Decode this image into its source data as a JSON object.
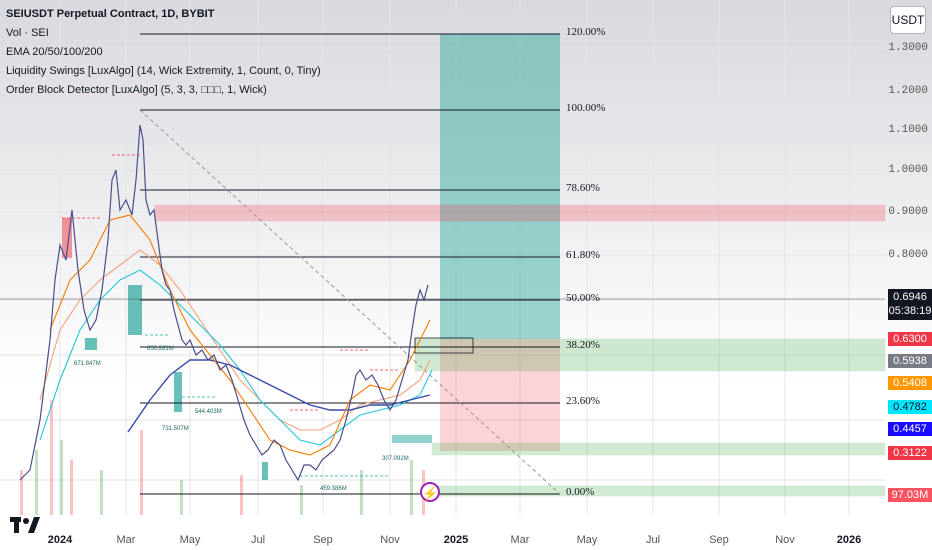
{
  "legend": {
    "title": "SEIUSDT Perpetual Contract, 1D, BYBIT",
    "lines": [
      "Vol · SEI",
      "EMA 20/50/100/200",
      "Liquidity Swings [LuxAlgo] (14, Wick Extremity, 1, Count, 0, Tiny)",
      "Order Block Detector [LuxAlgo] (5, 3, 3, □□□, 1, Wick)"
    ]
  },
  "currency_button": "USDT",
  "price_axis": [
    "1.3000",
    "1.2000",
    "1.1000",
    "1.0000",
    "0.9000",
    "0.8000"
  ],
  "price_badges": [
    {
      "value": "0.6946",
      "sub": "05:38:19",
      "color": "#131722"
    },
    {
      "value": "0.6300",
      "color": "#f23645"
    },
    {
      "value": "0.5938",
      "color": "#787b86"
    },
    {
      "value": "0.5408",
      "color": "#ff9800"
    },
    {
      "value": "0.4782",
      "color": "#00e5ff"
    },
    {
      "value": "0.4457",
      "color": "#1a0dff"
    },
    {
      "value": "0.3122",
      "color": "#f23645"
    },
    {
      "value": "97.03M",
      "color": "#f7525f"
    }
  ],
  "fib_levels": [
    "120.00%",
    "100.00%",
    "78.60%",
    "61.80%",
    "50.00%",
    "38.20%",
    "23.60%",
    "0.00%"
  ],
  "time_axis": [
    {
      "label": "2024",
      "bold": true
    },
    {
      "label": "Mar",
      "bold": false
    },
    {
      "label": "May",
      "bold": false
    },
    {
      "label": "Jul",
      "bold": false
    },
    {
      "label": "Sep",
      "bold": false
    },
    {
      "label": "Nov",
      "bold": false
    },
    {
      "label": "2025",
      "bold": true
    },
    {
      "label": "Mar",
      "bold": false
    },
    {
      "label": "May",
      "bold": false
    },
    {
      "label": "Jul",
      "bold": false
    },
    {
      "label": "Sep",
      "bold": false
    },
    {
      "label": "Nov",
      "bold": false
    },
    {
      "label": "2026",
      "bold": true
    }
  ],
  "chart_annotations": [
    "671.847M",
    "650.281M",
    "731.507M",
    "544.403M",
    "307.092M",
    "459.386M"
  ],
  "alert_glyph": "⚡",
  "colors": {
    "bull_block": "#4caf50",
    "bear_block": "#f23645",
    "ema20": "#f57c00",
    "ema50": "#26c6da",
    "ema100": "#3949ab",
    "ema200": "#f5a27a",
    "candles": "#4a4e8a",
    "fib_line": "#131722"
  }
}
